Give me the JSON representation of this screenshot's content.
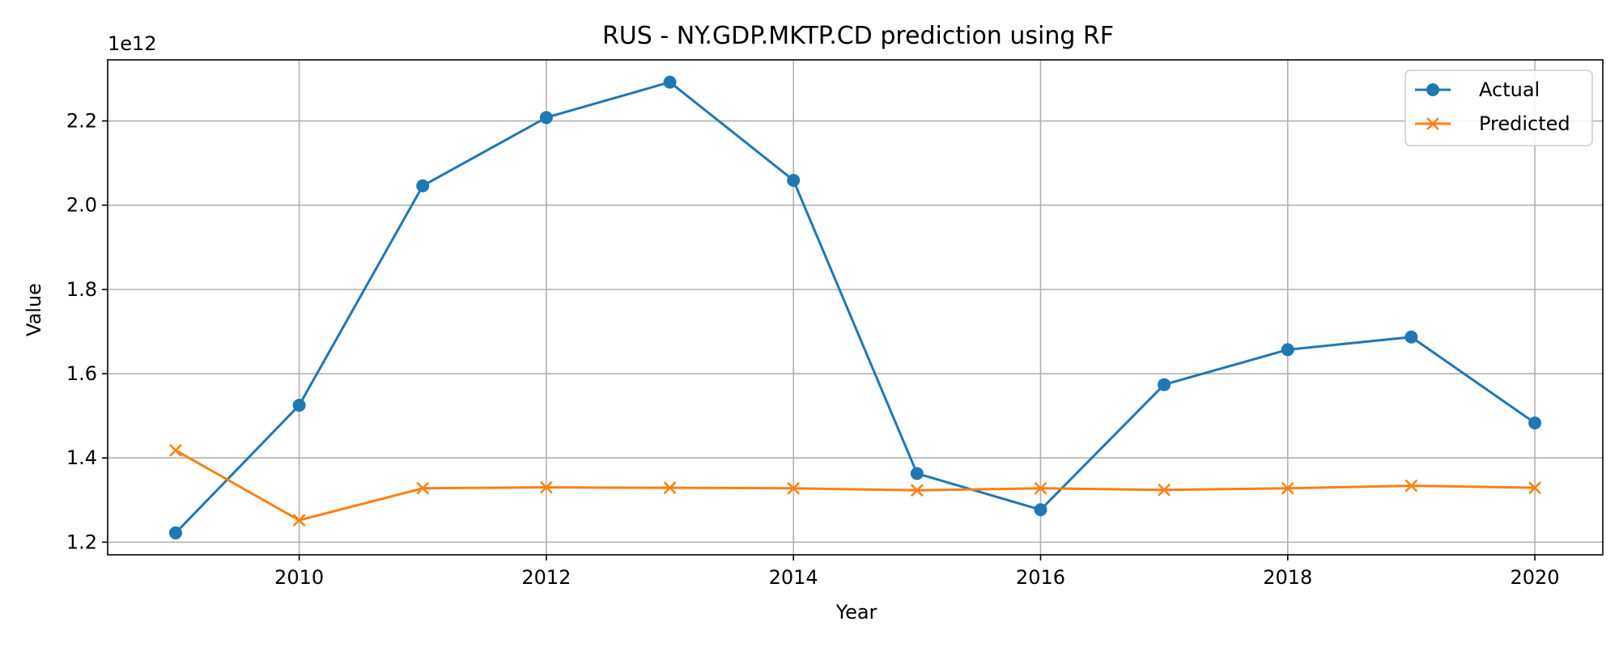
{
  "chart_data": {
    "type": "line",
    "title": "RUS - NY.GDP.MKTP.CD prediction using RF",
    "xlabel": "Year",
    "ylabel": "Value",
    "y_offset_label": "1e12",
    "x": [
      2009,
      2010,
      2011,
      2012,
      2013,
      2014,
      2015,
      2016,
      2017,
      2018,
      2019,
      2020
    ],
    "x_ticks": [
      2010,
      2012,
      2014,
      2016,
      2018,
      2020
    ],
    "y_ticks": [
      1.2,
      1.4,
      1.6,
      1.8,
      2.0,
      2.2
    ],
    "y_tick_labels": [
      "1.2",
      "1.4",
      "1.6",
      "1.8",
      "2.0",
      "2.2"
    ],
    "xlim": [
      2008.45,
      2020.55
    ],
    "ylim": [
      1.17,
      2.345
    ],
    "y_scale": "1e12",
    "grid": true,
    "legend_position": "top-right",
    "series": [
      {
        "name": "Actual",
        "color": "#1f77b4",
        "marker": "circle",
        "values": [
          1.222,
          1.525,
          2.046,
          2.208,
          2.292,
          2.059,
          1.363,
          1.277,
          1.574,
          1.657,
          1.687,
          1.483
        ]
      },
      {
        "name": "Predicted",
        "color": "#ff7f0e",
        "marker": "x",
        "values": [
          1.418,
          1.252,
          1.328,
          1.33,
          1.329,
          1.328,
          1.323,
          1.328,
          1.324,
          1.328,
          1.334,
          1.329
        ]
      }
    ]
  }
}
